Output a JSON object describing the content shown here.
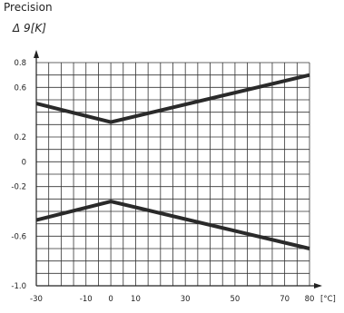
{
  "chart_data": {
    "type": "line",
    "title": "Precision",
    "ylabel": "Δ 9[K]",
    "xlabel": "",
    "x_unit": "[°C]",
    "xlim": [
      -30,
      80
    ],
    "ylim": [
      -1.0,
      0.8
    ],
    "grid": true,
    "x_ticks": [
      -30,
      -10,
      0,
      10,
      30,
      50,
      70,
      80
    ],
    "x_tick_labels": [
      "-30",
      "-10",
      "0",
      "10",
      "30",
      "50",
      "70",
      "80"
    ],
    "y_ticks": [
      0.8,
      0.6,
      0.2,
      0,
      -0.2,
      -0.6,
      -1.0
    ],
    "y_tick_labels": [
      "0.8",
      "0.6",
      "0.2",
      "0",
      "-0.2",
      "-0.6",
      "-1.0"
    ],
    "series": [
      {
        "x": [
          -30,
          0,
          80
        ],
        "y": [
          0.47,
          0.32,
          0.7
        ]
      },
      {
        "x": [
          -30,
          0,
          80
        ],
        "y": [
          -0.47,
          -0.32,
          -0.7
        ]
      }
    ],
    "line_color": "#2a2a2a",
    "grid_color": "#333333"
  }
}
